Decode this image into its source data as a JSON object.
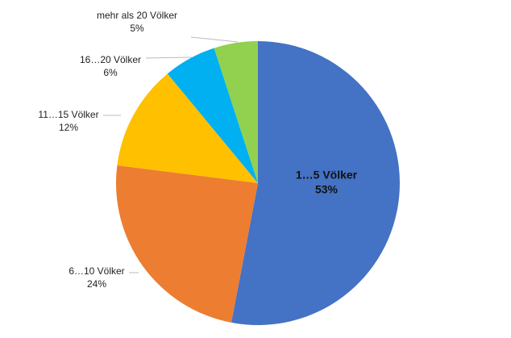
{
  "chart_data": {
    "type": "pie",
    "categories": [
      "1…5 Völker",
      "6…10 Völker",
      "11…15 Völker",
      "16…20 Völker",
      "mehr als 20 Völker"
    ],
    "values": [
      53,
      24,
      12,
      6,
      5
    ],
    "value_labels": [
      "53%",
      "24%",
      "12%",
      "6%",
      "5%"
    ],
    "colors": [
      "#4472c4",
      "#ed7d31",
      "#ffc000",
      "#00b0f0",
      "#92d050"
    ]
  }
}
